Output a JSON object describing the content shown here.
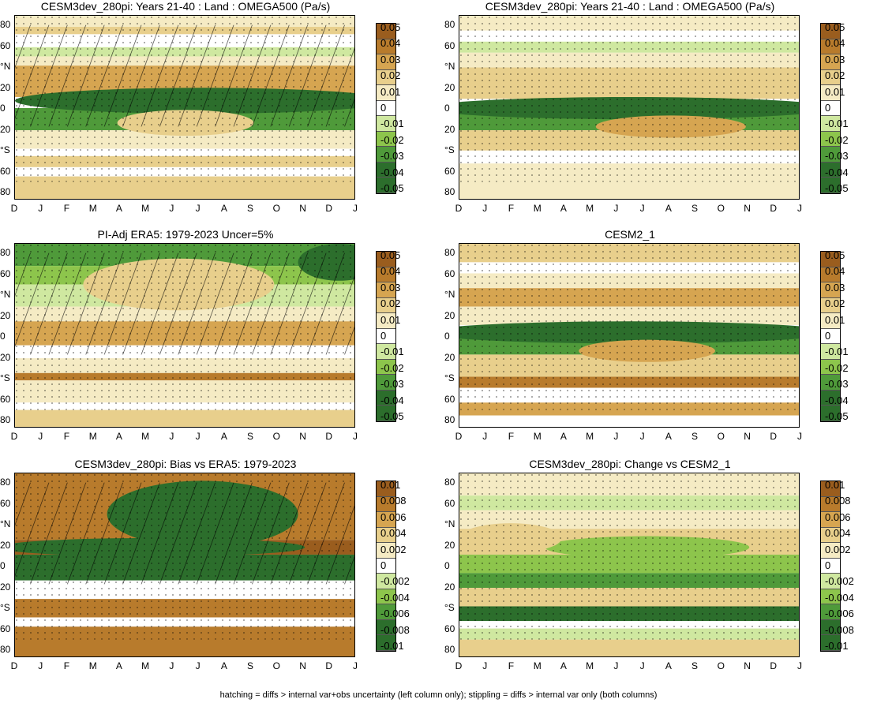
{
  "footer": "hatching = diffs > internal var+obs uncertainty (left column only); stippling = diffs > internal var only (both columns)",
  "months": [
    "D",
    "J",
    "F",
    "M",
    "A",
    "M",
    "J",
    "J",
    "A",
    "S",
    "O",
    "N",
    "D",
    "J"
  ],
  "lat_ticks": [
    "80",
    "60",
    "°N",
    "20",
    "0",
    "20",
    "°S",
    "60",
    "80"
  ],
  "colors": {
    "brown_dark": "#9a5d1e",
    "brown": "#b87b2c",
    "tan": "#d6a551",
    "light_tan": "#e8cf8c",
    "cream": "#f5ebc4",
    "white": "#ffffff",
    "light_green": "#cfe8a0",
    "green": "#8dc54c",
    "mid_green": "#4f9a3a",
    "dark_green": "#2c6e2c"
  },
  "chart_data": [
    {
      "type": "heatmap",
      "panel": "top-left",
      "title": "CESM3dev_280pi: Years 21-40 : Land : OMEGA500 (Pa/s)",
      "x_ticks": [
        "D",
        "J",
        "F",
        "M",
        "A",
        "M",
        "J",
        "J",
        "A",
        "S",
        "O",
        "N",
        "D",
        "J"
      ],
      "y_ticks": [
        "80",
        "60",
        "°N",
        "20",
        "0",
        "20",
        "°S",
        "60",
        "80"
      ],
      "colorbar": [
        "0.05",
        "0.04",
        "0.03",
        "0.02",
        "0.01",
        "0",
        "-0.01",
        "-0.02",
        "-0.03",
        "-0.04",
        "-0.05"
      ],
      "hatching": true,
      "stippling": true
    },
    {
      "type": "heatmap",
      "panel": "top-right",
      "title": "CESM3dev_280pi: Years 21-40 : Land : OMEGA500 (Pa/s)",
      "x_ticks": [
        "D",
        "J",
        "F",
        "M",
        "A",
        "M",
        "J",
        "J",
        "A",
        "S",
        "O",
        "N",
        "D",
        "J"
      ],
      "y_ticks": [
        "80",
        "60",
        "°N",
        "20",
        "0",
        "20",
        "°S",
        "60",
        "80"
      ],
      "colorbar": [
        "0.05",
        "0.04",
        "0.03",
        "0.02",
        "0.01",
        "0",
        "-0.01",
        "-0.02",
        "-0.03",
        "-0.04",
        "-0.05"
      ],
      "hatching": false,
      "stippling": true
    },
    {
      "type": "heatmap",
      "panel": "middle-left",
      "title": "PI-Adj ERA5: 1979-2023 Uncer=5%",
      "x_ticks": [
        "D",
        "J",
        "F",
        "M",
        "A",
        "M",
        "J",
        "J",
        "A",
        "S",
        "O",
        "N",
        "D",
        "J"
      ],
      "y_ticks": [
        "80",
        "60",
        "°N",
        "20",
        "0",
        "20",
        "°S",
        "60",
        "80"
      ],
      "colorbar": [
        "0.05",
        "0.04",
        "0.03",
        "0.02",
        "0.01",
        "0",
        "-0.01",
        "-0.02",
        "-0.03",
        "-0.04",
        "-0.05"
      ],
      "hatching": true,
      "stippling": true
    },
    {
      "type": "heatmap",
      "panel": "middle-right",
      "title": "CESM2_1",
      "x_ticks": [
        "D",
        "J",
        "F",
        "M",
        "A",
        "M",
        "J",
        "J",
        "A",
        "S",
        "O",
        "N",
        "D",
        "J"
      ],
      "y_ticks": [
        "80",
        "60",
        "°N",
        "20",
        "0",
        "20",
        "°S",
        "60",
        "80"
      ],
      "colorbar": [
        "0.05",
        "0.04",
        "0.03",
        "0.02",
        "0.01",
        "0",
        "-0.01",
        "-0.02",
        "-0.03",
        "-0.04",
        "-0.05"
      ],
      "hatching": false,
      "stippling": true
    },
    {
      "type": "heatmap",
      "panel": "bottom-left",
      "title": "CESM3dev_280pi: Bias vs ERA5: 1979-2023",
      "x_ticks": [
        "D",
        "J",
        "F",
        "M",
        "A",
        "M",
        "J",
        "J",
        "A",
        "S",
        "O",
        "N",
        "D",
        "J"
      ],
      "y_ticks": [
        "80",
        "60",
        "°N",
        "20",
        "0",
        "20",
        "°S",
        "60",
        "80"
      ],
      "colorbar": [
        "0.01",
        "0.008",
        "0.006",
        "0.004",
        "0.002",
        "0",
        "-0.002",
        "-0.004",
        "-0.006",
        "-0.008",
        "-0.01"
      ],
      "hatching": true,
      "stippling": true
    },
    {
      "type": "heatmap",
      "panel": "bottom-right",
      "title": "CESM3dev_280pi: Change vs CESM2_1",
      "x_ticks": [
        "D",
        "J",
        "F",
        "M",
        "A",
        "M",
        "J",
        "J",
        "A",
        "S",
        "O",
        "N",
        "D",
        "J"
      ],
      "y_ticks": [
        "80",
        "60",
        "°N",
        "20",
        "0",
        "20",
        "°S",
        "60",
        "80"
      ],
      "colorbar": [
        "0.01",
        "0.008",
        "0.006",
        "0.004",
        "0.002",
        "0",
        "-0.002",
        "-0.004",
        "-0.006",
        "-0.008",
        "-0.01"
      ],
      "hatching": false,
      "stippling": true
    }
  ]
}
